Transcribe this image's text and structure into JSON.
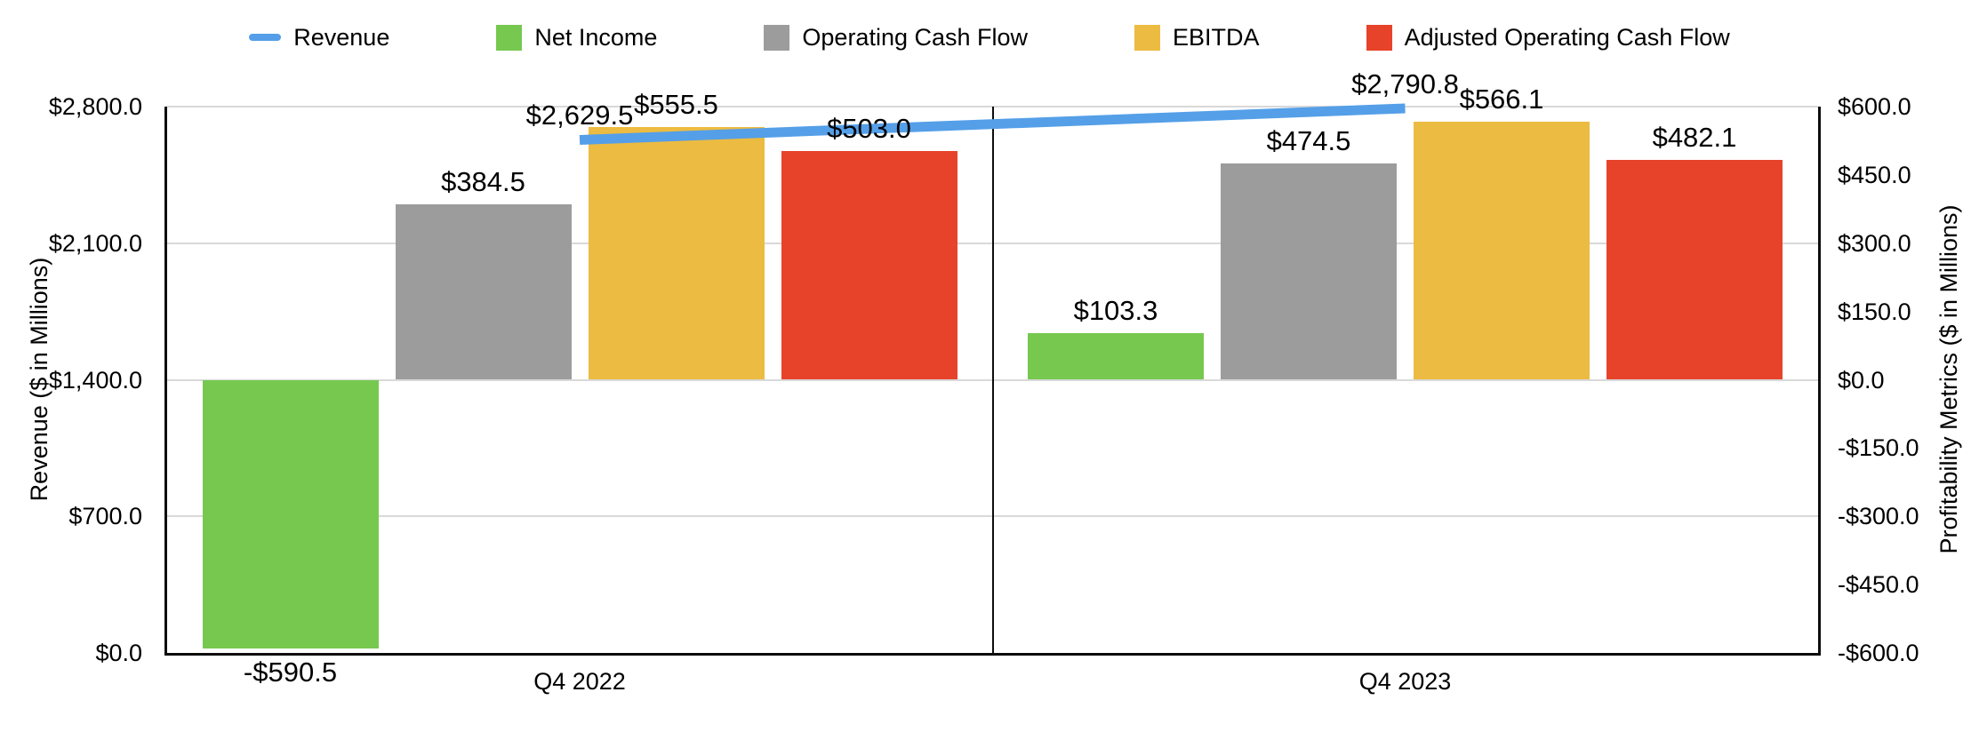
{
  "legend": {
    "items": [
      {
        "id": "revenue",
        "label": "Revenue",
        "swatch": "line",
        "color": "#549FE8"
      },
      {
        "id": "net-income",
        "label": "Net Income",
        "swatch": "square",
        "color": "#76C84F"
      },
      {
        "id": "operating-cash-flow",
        "label": "Operating Cash Flow",
        "swatch": "square",
        "color": "#9C9C9C"
      },
      {
        "id": "ebitda",
        "label": "EBITDA",
        "swatch": "square",
        "color": "#ECBB41"
      },
      {
        "id": "adjusted-operating-cash-flow",
        "label": "Adjusted Operating Cash Flow",
        "swatch": "square",
        "color": "#E7432B"
      }
    ]
  },
  "chart_data": {
    "type": "combo-bar-line",
    "categories": [
      "Q4 2022",
      "Q4 2023"
    ],
    "left_axis": {
      "title": "Revenue ($ in Millions)",
      "min": 0,
      "max": 2800,
      "tick_step": 700,
      "ticks": [
        "$0.0",
        "$700.0",
        "$1,400.0",
        "$2,100.0",
        "$2,800.0"
      ]
    },
    "right_axis": {
      "title": "Profitability Metrics ($ in Millions)",
      "min": -600,
      "max": 600,
      "tick_step": 150,
      "ticks": [
        "-$600.0",
        "-$450.0",
        "-$300.0",
        "-$150.0",
        "$0.0",
        "$150.0",
        "$300.0",
        "$450.0",
        "$600.0"
      ]
    },
    "line_series": {
      "name": "Revenue",
      "axis": "left",
      "color": "#549FE8",
      "values": [
        2629.5,
        2790.8
      ],
      "labels": [
        "$2,629.5",
        "$2,790.8"
      ]
    },
    "bar_series": [
      {
        "name": "Net Income",
        "axis": "right",
        "color": "#76C84F",
        "values": [
          -590.5,
          103.3
        ],
        "labels": [
          "-$590.5",
          "$103.3"
        ]
      },
      {
        "name": "Operating Cash Flow",
        "axis": "right",
        "color": "#9C9C9C",
        "values": [
          384.5,
          474.5
        ],
        "labels": [
          "$384.5",
          "$474.5"
        ]
      },
      {
        "name": "EBITDA",
        "axis": "right",
        "color": "#ECBB41",
        "values": [
          555.5,
          566.1
        ],
        "labels": [
          "$555.5",
          "$566.1"
        ]
      },
      {
        "name": "Adjusted Operating Cash Flow",
        "axis": "right",
        "color": "#E7432B",
        "values": [
          503.0,
          482.1
        ],
        "labels": [
          "$503.0",
          "$482.1"
        ]
      }
    ],
    "gridlines": {
      "at_left_ticks": true,
      "color": "#D9D9D9",
      "category_separator": true
    }
  }
}
